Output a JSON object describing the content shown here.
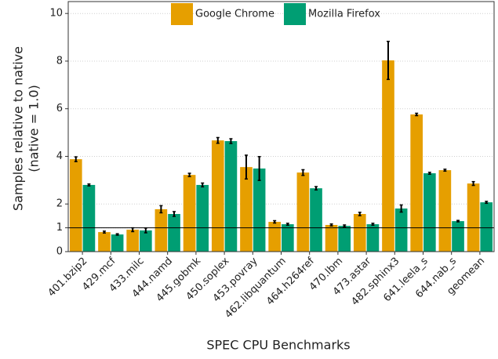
{
  "chart_data": {
    "type": "bar",
    "ylabel": [
      "Samples relative to native",
      "(native = 1.0)"
    ],
    "xlabel": "SPEC CPU Benchmarks",
    "categories": [
      "401.bzip2",
      "429.mcf",
      "433.milc",
      "444.namd",
      "445.gobmk",
      "450.soplex",
      "453.povray",
      "462.libquantum",
      "464.h264ref",
      "470.lbm",
      "473.astar",
      "482.sphinx3",
      "641.leela_s",
      "644.nab_s",
      "geomean"
    ],
    "series": [
      {
        "name": "Google Chrome",
        "color": "#e69f00",
        "values": [
          3.88,
          0.82,
          0.92,
          1.78,
          3.22,
          4.67,
          3.55,
          1.25,
          3.32,
          1.12,
          1.58,
          8.03,
          5.76,
          3.42,
          2.86
        ],
        "errors": [
          0.1,
          0.04,
          0.08,
          0.15,
          0.07,
          0.12,
          0.5,
          0.05,
          0.12,
          0.04,
          0.07,
          0.8,
          0.05,
          0.04,
          0.08
        ]
      },
      {
        "name": "Mozilla Firefox",
        "color": "#009e73",
        "values": [
          2.8,
          0.72,
          0.89,
          1.58,
          2.8,
          4.64,
          3.49,
          1.15,
          2.66,
          1.08,
          1.15,
          1.81,
          3.29,
          1.28,
          2.07
        ],
        "errors": [
          0.04,
          0.03,
          0.1,
          0.1,
          0.08,
          0.1,
          0.5,
          0.04,
          0.07,
          0.04,
          0.04,
          0.15,
          0.04,
          0.03,
          0.04
        ]
      }
    ],
    "ylim": [
      0,
      10.5
    ],
    "yticks": [
      0,
      1,
      2,
      4,
      6,
      8,
      10
    ],
    "reference_line": 1,
    "grid": true,
    "legend": "top"
  }
}
